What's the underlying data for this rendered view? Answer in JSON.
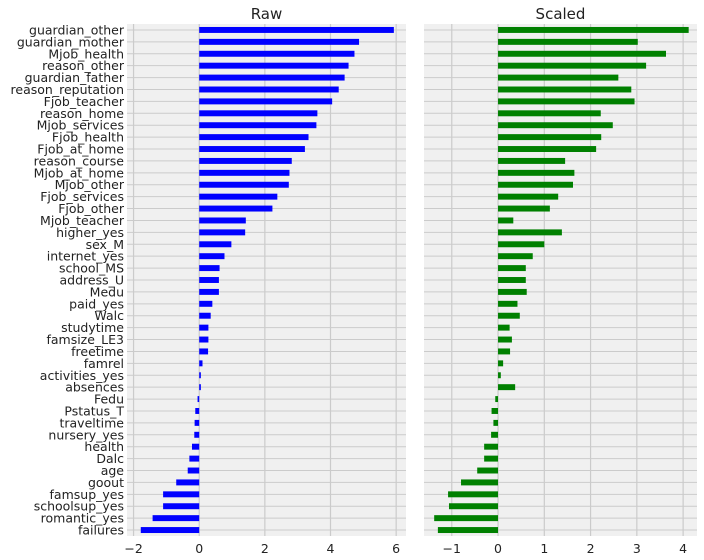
{
  "chart_data": [
    {
      "type": "bar",
      "orientation": "horizontal",
      "title": "Raw",
      "color": "#0000ff",
      "xlim": [
        -2.2,
        6.3
      ],
      "xticks": [
        -2,
        0,
        2,
        4,
        6
      ],
      "xtick_labels": [
        "−2",
        "0",
        "2",
        "4",
        "6"
      ],
      "grid": true,
      "categories": [
        "guardian_other",
        "guardian_mother",
        "Mjob_health",
        "reason_other",
        "guardian_father",
        "reason_reputation",
        "Fjob_teacher",
        "reason_home",
        "Mjob_services",
        "Fjob_health",
        "Fjob_at_home",
        "reason_course",
        "Mjob_at_home",
        "Mjob_other",
        "Fjob_services",
        "Fjob_other",
        "Mjob_teacher",
        "higher_yes",
        "sex_M",
        "internet_yes",
        "school_MS",
        "address_U",
        "Medu",
        "paid_yes",
        "Walc",
        "studytime",
        "famsize_LE3",
        "freetime",
        "famrel",
        "activities_yes",
        "absences",
        "Fedu",
        "Pstatus_T",
        "traveltime",
        "nursery_yes",
        "health",
        "Dalc",
        "age",
        "goout",
        "famsup_yes",
        "schoolsup_yes",
        "romantic_yes",
        "failures"
      ],
      "values": [
        5.93,
        4.87,
        4.73,
        4.55,
        4.43,
        4.25,
        4.05,
        3.6,
        3.57,
        3.33,
        3.22,
        2.82,
        2.75,
        2.73,
        2.38,
        2.23,
        1.42,
        1.4,
        0.98,
        0.77,
        0.62,
        0.6,
        0.6,
        0.4,
        0.35,
        0.28,
        0.28,
        0.27,
        0.1,
        0.05,
        0.05,
        -0.05,
        -0.12,
        -0.14,
        -0.15,
        -0.22,
        -0.3,
        -0.35,
        -0.7,
        -1.1,
        -1.1,
        -1.42,
        -1.78
      ]
    },
    {
      "type": "bar",
      "orientation": "horizontal",
      "title": "Scaled",
      "color": "#008000",
      "xlim": [
        -1.6,
        4.3
      ],
      "xticks": [
        -1,
        0,
        1,
        2,
        3,
        4
      ],
      "xtick_labels": [
        "−1",
        "0",
        "1",
        "2",
        "3",
        "4"
      ],
      "grid": true,
      "values": [
        4.12,
        3.02,
        3.63,
        3.2,
        2.6,
        2.88,
        2.95,
        2.22,
        2.48,
        2.23,
        2.12,
        1.45,
        1.65,
        1.62,
        1.3,
        1.12,
        0.33,
        1.38,
        1.0,
        0.75,
        0.6,
        0.6,
        0.62,
        0.42,
        0.47,
        0.25,
        0.3,
        0.26,
        0.11,
        0.06,
        0.37,
        -0.06,
        -0.14,
        -0.1,
        -0.15,
        -0.3,
        -0.3,
        -0.45,
        -0.8,
        -1.08,
        -1.06,
        -1.38,
        -1.3
      ]
    }
  ]
}
